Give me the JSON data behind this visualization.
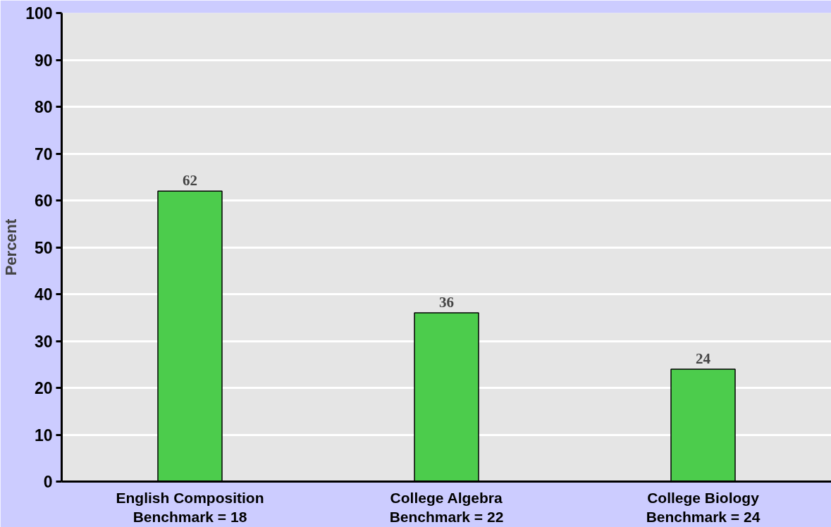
{
  "chart_data": {
    "type": "bar",
    "ylabel": "Percent",
    "categories": [
      "English Composition\nBenchmark = 18",
      "College Algebra\nBenchmark = 22",
      "College Biology\nBenchmark = 24"
    ],
    "values": [
      62,
      36,
      24
    ],
    "color": "#4ccc4c",
    "ylim": [
      0,
      100
    ],
    "yticks": [
      0,
      10,
      20,
      30,
      40,
      50,
      60,
      70,
      80,
      90,
      100
    ],
    "grid": "y",
    "data_labels": true
  }
}
